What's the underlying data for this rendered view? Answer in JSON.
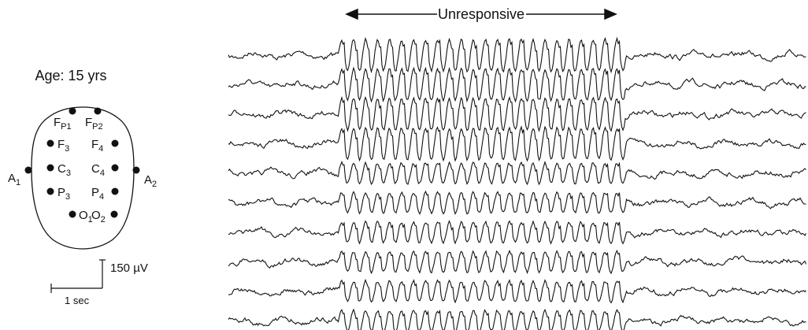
{
  "header": {
    "label": "Unresponsive"
  },
  "subject": {
    "age": "Age: 15 yrs"
  },
  "electrodes": [
    {
      "base": "F",
      "sub": "P1"
    },
    {
      "base": "F",
      "sub": "P2"
    },
    {
      "base": "F",
      "sub": "3"
    },
    {
      "base": "F",
      "sub": "4"
    },
    {
      "base": "C",
      "sub": "3"
    },
    {
      "base": "C",
      "sub": "4"
    },
    {
      "base": "P",
      "sub": "3"
    },
    {
      "base": "P",
      "sub": "4"
    },
    {
      "base": "O",
      "sub": "1"
    },
    {
      "base": "O",
      "sub": "2"
    },
    {
      "base": "A",
      "sub": "1"
    },
    {
      "base": "A",
      "sub": "2"
    }
  ],
  "scale": {
    "amplitude": "150 µV",
    "time": "1 sec"
  }
}
